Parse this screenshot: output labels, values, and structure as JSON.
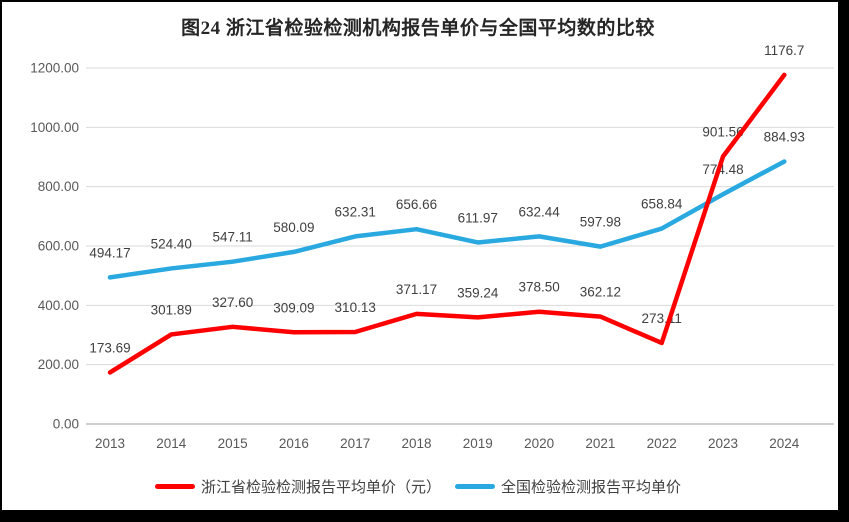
{
  "chart_data": {
    "type": "line",
    "title": "图24  浙江省检验检测机构报告单价与全国平均数的比较",
    "categories": [
      "2013",
      "2014",
      "2015",
      "2016",
      "2017",
      "2018",
      "2019",
      "2020",
      "2021",
      "2022",
      "2023",
      "2024"
    ],
    "series": [
      {
        "id": "zhejiang",
        "name": "浙江省检验检测报告平均单价（元）",
        "color": "#fe0000",
        "values": [
          173.69,
          301.89,
          327.6,
          309.09,
          310.13,
          371.17,
          359.24,
          378.5,
          362.12,
          273.11,
          901.56,
          1176.7
        ],
        "labels": [
          "173.69",
          "301.89",
          "327.60",
          "309.09",
          "310.13",
          "371.17",
          "359.24",
          "378.50",
          "362.12",
          "273.11",
          "901.56",
          "1176.7"
        ]
      },
      {
        "id": "national",
        "name": "全国检验检测报告平均单价",
        "color": "#29a9e0",
        "values": [
          494.17,
          524.4,
          547.11,
          580.09,
          632.31,
          656.66,
          611.97,
          632.44,
          597.98,
          658.84,
          774.48,
          884.93
        ],
        "labels": [
          "494.17",
          "524.40",
          "547.11",
          "580.09",
          "632.31",
          "656.66",
          "611.97",
          "632.44",
          "597.98",
          "658.84",
          "774.48",
          "884.93"
        ]
      }
    ],
    "y_ticks": [
      "0.00",
      "200.00",
      "400.00",
      "600.00",
      "800.00",
      "1000.00",
      "1200.00"
    ],
    "y_tick_values": [
      0,
      200,
      400,
      600,
      800,
      1000,
      1200
    ],
    "ylim": [
      0,
      1200
    ],
    "grid": true,
    "legend_position": "bottom",
    "colors": {
      "grid": "#d9d9d9",
      "axis_line": "#bfbfbf",
      "data_label": "#404040",
      "tick_label": "#595959",
      "title": "#262626",
      "frame": "#000000",
      "background": "#ffffff"
    }
  }
}
